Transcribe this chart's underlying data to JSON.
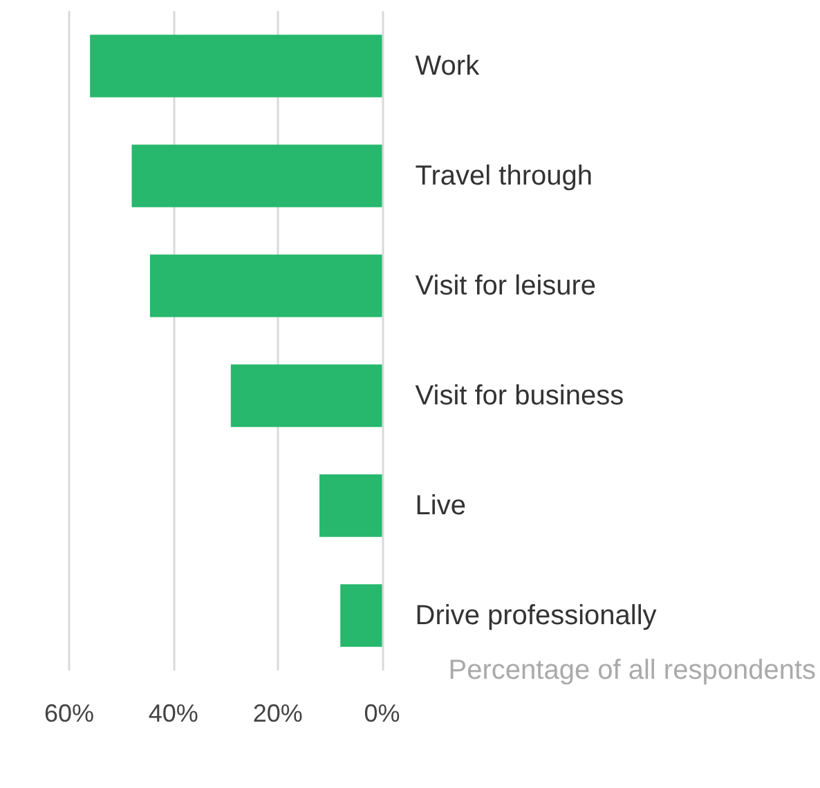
{
  "chart_data": {
    "type": "bar",
    "orientation": "horizontal",
    "xlabel": "Percentage of all respondents",
    "categories": [
      "Work",
      "Travel through",
      "Visit for leisure",
      "Visit for business",
      "Live",
      "Drive professionally"
    ],
    "values": [
      56,
      48,
      44.5,
      29,
      12,
      8
    ],
    "color": "#27b86e",
    "xlim": [
      60,
      0
    ],
    "xticks": [
      {
        "value": 60,
        "label": "60%"
      },
      {
        "value": 40,
        "label": "40%"
      },
      {
        "value": 20,
        "label": "20%"
      },
      {
        "value": 0,
        "label": "0%"
      }
    ],
    "grid": "x"
  }
}
